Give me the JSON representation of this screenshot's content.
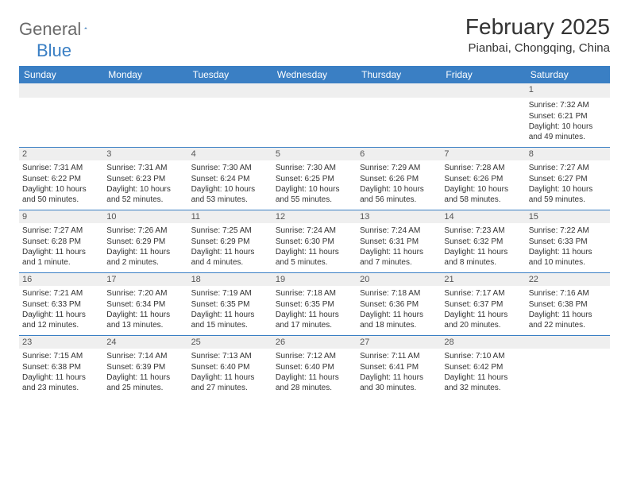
{
  "logo": {
    "text_gray": "General",
    "text_blue": "Blue"
  },
  "title": "February 2025",
  "location": "Pianbai, Chongqing, China",
  "colors": {
    "header_bg": "#3a7fc4",
    "header_text": "#ffffff",
    "band_bg": "#efefef",
    "border": "#3a7fc4",
    "body_text": "#333333",
    "logo_gray": "#6a6a6a",
    "logo_blue": "#3a7fc4"
  },
  "fonts": {
    "title_size": 28,
    "location_size": 15,
    "header_size": 12,
    "daynum_size": 11,
    "detail_size": 10
  },
  "dayNames": [
    "Sunday",
    "Monday",
    "Tuesday",
    "Wednesday",
    "Thursday",
    "Friday",
    "Saturday"
  ],
  "weeks": [
    [
      null,
      null,
      null,
      null,
      null,
      null,
      {
        "n": "1",
        "sunrise": "Sunrise: 7:32 AM",
        "sunset": "Sunset: 6:21 PM",
        "daylight": "Daylight: 10 hours and 49 minutes."
      }
    ],
    [
      {
        "n": "2",
        "sunrise": "Sunrise: 7:31 AM",
        "sunset": "Sunset: 6:22 PM",
        "daylight": "Daylight: 10 hours and 50 minutes."
      },
      {
        "n": "3",
        "sunrise": "Sunrise: 7:31 AM",
        "sunset": "Sunset: 6:23 PM",
        "daylight": "Daylight: 10 hours and 52 minutes."
      },
      {
        "n": "4",
        "sunrise": "Sunrise: 7:30 AM",
        "sunset": "Sunset: 6:24 PM",
        "daylight": "Daylight: 10 hours and 53 minutes."
      },
      {
        "n": "5",
        "sunrise": "Sunrise: 7:30 AM",
        "sunset": "Sunset: 6:25 PM",
        "daylight": "Daylight: 10 hours and 55 minutes."
      },
      {
        "n": "6",
        "sunrise": "Sunrise: 7:29 AM",
        "sunset": "Sunset: 6:26 PM",
        "daylight": "Daylight: 10 hours and 56 minutes."
      },
      {
        "n": "7",
        "sunrise": "Sunrise: 7:28 AM",
        "sunset": "Sunset: 6:26 PM",
        "daylight": "Daylight: 10 hours and 58 minutes."
      },
      {
        "n": "8",
        "sunrise": "Sunrise: 7:27 AM",
        "sunset": "Sunset: 6:27 PM",
        "daylight": "Daylight: 10 hours and 59 minutes."
      }
    ],
    [
      {
        "n": "9",
        "sunrise": "Sunrise: 7:27 AM",
        "sunset": "Sunset: 6:28 PM",
        "daylight": "Daylight: 11 hours and 1 minute."
      },
      {
        "n": "10",
        "sunrise": "Sunrise: 7:26 AM",
        "sunset": "Sunset: 6:29 PM",
        "daylight": "Daylight: 11 hours and 2 minutes."
      },
      {
        "n": "11",
        "sunrise": "Sunrise: 7:25 AM",
        "sunset": "Sunset: 6:29 PM",
        "daylight": "Daylight: 11 hours and 4 minutes."
      },
      {
        "n": "12",
        "sunrise": "Sunrise: 7:24 AM",
        "sunset": "Sunset: 6:30 PM",
        "daylight": "Daylight: 11 hours and 5 minutes."
      },
      {
        "n": "13",
        "sunrise": "Sunrise: 7:24 AM",
        "sunset": "Sunset: 6:31 PM",
        "daylight": "Daylight: 11 hours and 7 minutes."
      },
      {
        "n": "14",
        "sunrise": "Sunrise: 7:23 AM",
        "sunset": "Sunset: 6:32 PM",
        "daylight": "Daylight: 11 hours and 8 minutes."
      },
      {
        "n": "15",
        "sunrise": "Sunrise: 7:22 AM",
        "sunset": "Sunset: 6:33 PM",
        "daylight": "Daylight: 11 hours and 10 minutes."
      }
    ],
    [
      {
        "n": "16",
        "sunrise": "Sunrise: 7:21 AM",
        "sunset": "Sunset: 6:33 PM",
        "daylight": "Daylight: 11 hours and 12 minutes."
      },
      {
        "n": "17",
        "sunrise": "Sunrise: 7:20 AM",
        "sunset": "Sunset: 6:34 PM",
        "daylight": "Daylight: 11 hours and 13 minutes."
      },
      {
        "n": "18",
        "sunrise": "Sunrise: 7:19 AM",
        "sunset": "Sunset: 6:35 PM",
        "daylight": "Daylight: 11 hours and 15 minutes."
      },
      {
        "n": "19",
        "sunrise": "Sunrise: 7:18 AM",
        "sunset": "Sunset: 6:35 PM",
        "daylight": "Daylight: 11 hours and 17 minutes."
      },
      {
        "n": "20",
        "sunrise": "Sunrise: 7:18 AM",
        "sunset": "Sunset: 6:36 PM",
        "daylight": "Daylight: 11 hours and 18 minutes."
      },
      {
        "n": "21",
        "sunrise": "Sunrise: 7:17 AM",
        "sunset": "Sunset: 6:37 PM",
        "daylight": "Daylight: 11 hours and 20 minutes."
      },
      {
        "n": "22",
        "sunrise": "Sunrise: 7:16 AM",
        "sunset": "Sunset: 6:38 PM",
        "daylight": "Daylight: 11 hours and 22 minutes."
      }
    ],
    [
      {
        "n": "23",
        "sunrise": "Sunrise: 7:15 AM",
        "sunset": "Sunset: 6:38 PM",
        "daylight": "Daylight: 11 hours and 23 minutes."
      },
      {
        "n": "24",
        "sunrise": "Sunrise: 7:14 AM",
        "sunset": "Sunset: 6:39 PM",
        "daylight": "Daylight: 11 hours and 25 minutes."
      },
      {
        "n": "25",
        "sunrise": "Sunrise: 7:13 AM",
        "sunset": "Sunset: 6:40 PM",
        "daylight": "Daylight: 11 hours and 27 minutes."
      },
      {
        "n": "26",
        "sunrise": "Sunrise: 7:12 AM",
        "sunset": "Sunset: 6:40 PM",
        "daylight": "Daylight: 11 hours and 28 minutes."
      },
      {
        "n": "27",
        "sunrise": "Sunrise: 7:11 AM",
        "sunset": "Sunset: 6:41 PM",
        "daylight": "Daylight: 11 hours and 30 minutes."
      },
      {
        "n": "28",
        "sunrise": "Sunrise: 7:10 AM",
        "sunset": "Sunset: 6:42 PM",
        "daylight": "Daylight: 11 hours and 32 minutes."
      },
      null
    ]
  ]
}
